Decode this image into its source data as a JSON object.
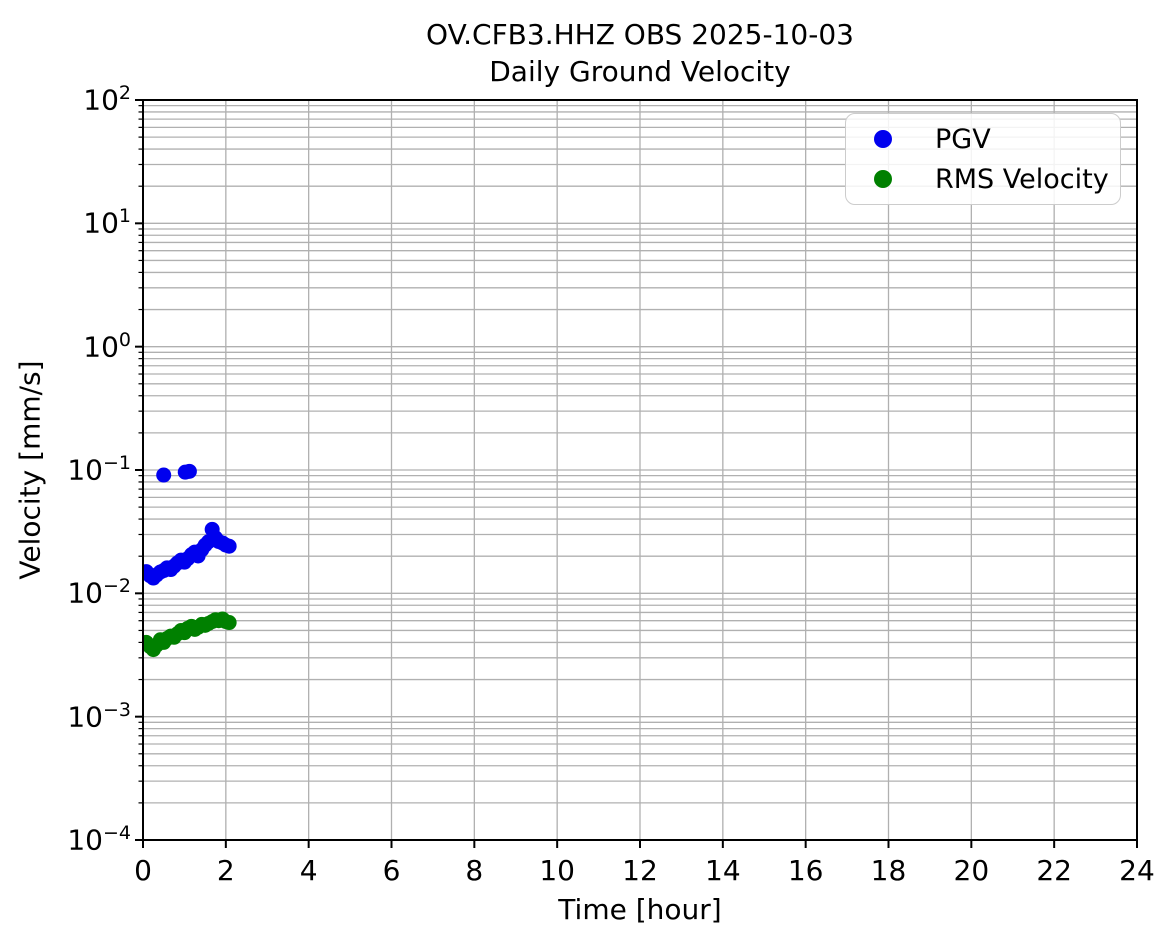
{
  "chart_data": {
    "type": "scatter",
    "title_lines": [
      "OV.CFB3.HHZ OBS 2025-10-03",
      "Daily Ground Velocity"
    ],
    "xlabel": "Time [hour]",
    "ylabel": "Velocity [mm/s]",
    "x_ticks": [
      0,
      2,
      4,
      6,
      8,
      10,
      12,
      14,
      16,
      18,
      20,
      22,
      24
    ],
    "xlim": [
      0,
      24
    ],
    "y_scale": "log",
    "y_tick_exponents": [
      2,
      1,
      0,
      -1,
      -2,
      -3,
      -4
    ],
    "ylim": [
      0.0001,
      100
    ],
    "grid": "both-major-and-minor",
    "grid_color": "#b0b0b0",
    "spine_color": "#000000",
    "legend_position": "upper right",
    "series": [
      {
        "name": "PGV",
        "color": "#0000ee",
        "marker": "circle",
        "points": [
          [
            0.08,
            0.015
          ],
          [
            0.17,
            0.0139
          ],
          [
            0.25,
            0.0133
          ],
          [
            0.33,
            0.0141
          ],
          [
            0.42,
            0.0149
          ],
          [
            0.5,
            0.0153
          ],
          [
            0.5,
            0.091
          ],
          [
            0.58,
            0.0161
          ],
          [
            0.67,
            0.0156
          ],
          [
            0.75,
            0.0166
          ],
          [
            0.83,
            0.0176
          ],
          [
            0.92,
            0.0186
          ],
          [
            1.0,
            0.0179
          ],
          [
            1.02,
            0.096
          ],
          [
            1.08,
            0.0191
          ],
          [
            1.12,
            0.0975
          ],
          [
            1.17,
            0.0206
          ],
          [
            1.25,
            0.0216
          ],
          [
            1.33,
            0.0201
          ],
          [
            1.42,
            0.0226
          ],
          [
            1.5,
            0.0246
          ],
          [
            1.58,
            0.0262
          ],
          [
            1.67,
            0.033
          ],
          [
            1.75,
            0.0282
          ],
          [
            1.83,
            0.0263
          ],
          [
            1.92,
            0.0256
          ],
          [
            2.0,
            0.0246
          ],
          [
            2.08,
            0.0241
          ]
        ]
      },
      {
        "name": "RMS Velocity",
        "color": "#008000",
        "marker": "circle",
        "points": [
          [
            0.08,
            0.004
          ],
          [
            0.17,
            0.0037
          ],
          [
            0.25,
            0.0035
          ],
          [
            0.33,
            0.0038
          ],
          [
            0.42,
            0.0042
          ],
          [
            0.5,
            0.004
          ],
          [
            0.58,
            0.0043
          ],
          [
            0.67,
            0.0045
          ],
          [
            0.75,
            0.0044
          ],
          [
            0.83,
            0.0047
          ],
          [
            0.92,
            0.005
          ],
          [
            1.0,
            0.0048
          ],
          [
            1.08,
            0.0052
          ],
          [
            1.17,
            0.0054
          ],
          [
            1.25,
            0.0051
          ],
          [
            1.33,
            0.0053
          ],
          [
            1.42,
            0.0056
          ],
          [
            1.5,
            0.0055
          ],
          [
            1.58,
            0.0057
          ],
          [
            1.67,
            0.0059
          ],
          [
            1.75,
            0.0061
          ],
          [
            1.83,
            0.006
          ],
          [
            1.92,
            0.0062
          ],
          [
            2.0,
            0.0059
          ],
          [
            2.08,
            0.0058
          ]
        ]
      }
    ]
  }
}
